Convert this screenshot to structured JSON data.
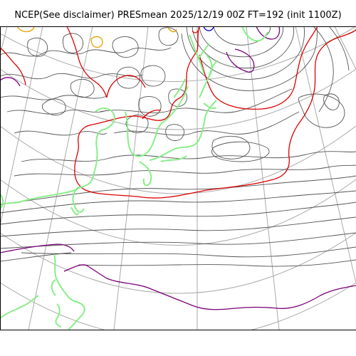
{
  "title": "NCEP(See disclaimer) PRESmean 2025/12/19 00Z FT=192 (init 1100Z)",
  "colors": {
    "graticule": "#aaaaaa",
    "isobar": "#555555",
    "contour_1008": "#dd0000",
    "contour_high": "#7a007a",
    "coastline": "#88ee88",
    "contour_low_orange": "#e8a000",
    "contour_low_blue": "#0000cc",
    "frame": "#000000"
  }
}
